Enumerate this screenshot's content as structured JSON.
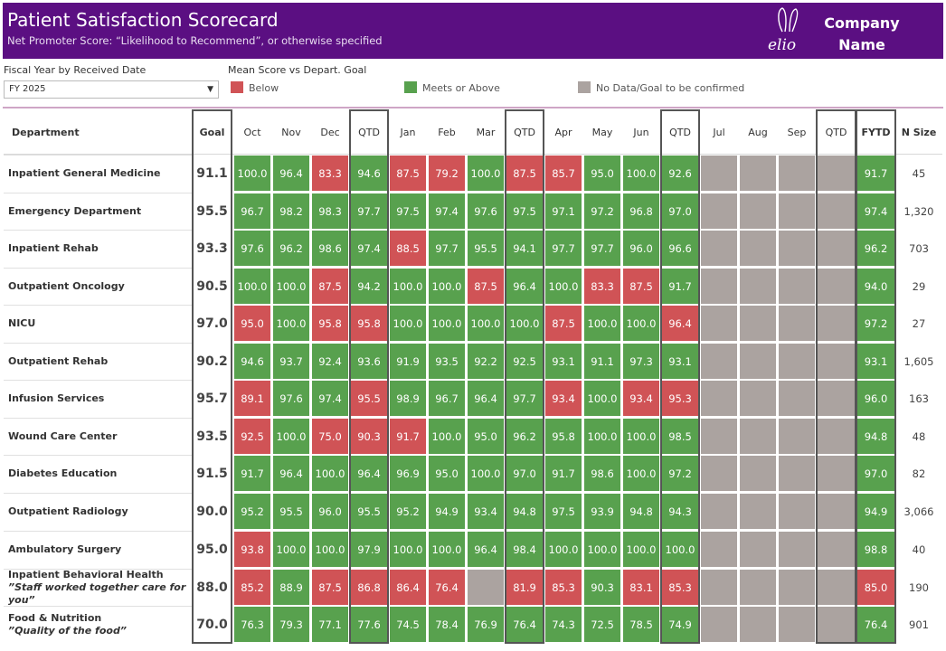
{
  "header": {
    "title": "Patient Satisfaction Scorecard",
    "subtitle": "Net Promoter Score: “Likelihood to Recommend”, or otherwise specified",
    "logo_text": "elio",
    "company_line1": "Company",
    "company_line2": "Name"
  },
  "filter": {
    "label": "Fiscal Year by Received Date",
    "value": "FY 2025"
  },
  "legend": {
    "title": "Mean Score vs Depart. Goal",
    "items": [
      {
        "label": "Below",
        "color": "#d05356"
      },
      {
        "label": "Meets or Above",
        "color": "#58a14e"
      },
      {
        "label": "No Data/Goal to be confirmed",
        "color": "#aba3a0"
      }
    ]
  },
  "chart_data": {
    "type": "table",
    "title": "Patient Satisfaction Scorecard",
    "columns": [
      "Department",
      "Goal",
      "Oct",
      "Nov",
      "Dec",
      "QTD",
      "Jan",
      "Feb",
      "Mar",
      "QTD",
      "Apr",
      "May",
      "Jun",
      "QTD",
      "Jul",
      "Aug",
      "Sep",
      "QTD",
      "FYTD",
      "N Size"
    ],
    "rows": [
      {
        "dept": "Inpatient General Medicine",
        "sub": "",
        "goal": "91.1",
        "values": [
          "100.0",
          "96.4",
          "83.3",
          "94.6",
          "87.5",
          "79.2",
          "100.0",
          "87.5",
          "85.7",
          "95.0",
          "100.0",
          "92.6",
          "",
          "",
          "",
          "",
          "91.7"
        ],
        "n": "45"
      },
      {
        "dept": "Emergency Department",
        "sub": "",
        "goal": "95.5",
        "values": [
          "96.7",
          "98.2",
          "98.3",
          "97.7",
          "97.5",
          "97.4",
          "97.6",
          "97.5",
          "97.1",
          "97.2",
          "96.8",
          "97.0",
          "",
          "",
          "",
          "",
          "97.4"
        ],
        "n": "1,320"
      },
      {
        "dept": "Inpatient Rehab",
        "sub": "",
        "goal": "93.3",
        "values": [
          "97.6",
          "96.2",
          "98.6",
          "97.4",
          "88.5",
          "97.7",
          "95.5",
          "94.1",
          "97.7",
          "97.7",
          "96.0",
          "96.6",
          "",
          "",
          "",
          "",
          "96.2"
        ],
        "n": "703"
      },
      {
        "dept": "Outpatient Oncology",
        "sub": "",
        "goal": "90.5",
        "values": [
          "100.0",
          "100.0",
          "87.5",
          "94.2",
          "100.0",
          "100.0",
          "87.5",
          "96.4",
          "100.0",
          "83.3",
          "87.5",
          "91.7",
          "",
          "",
          "",
          "",
          "94.0"
        ],
        "n": "29"
      },
      {
        "dept": "NICU",
        "sub": "",
        "goal": "97.0",
        "values": [
          "95.0",
          "100.0",
          "95.8",
          "95.8",
          "100.0",
          "100.0",
          "100.0",
          "100.0",
          "87.5",
          "100.0",
          "100.0",
          "96.4",
          "",
          "",
          "",
          "",
          "97.2"
        ],
        "n": "27"
      },
      {
        "dept": "Outpatient Rehab",
        "sub": "",
        "goal": "90.2",
        "values": [
          "94.6",
          "93.7",
          "92.4",
          "93.6",
          "91.9",
          "93.5",
          "92.2",
          "92.5",
          "93.1",
          "91.1",
          "97.3",
          "93.1",
          "",
          "",
          "",
          "",
          "93.1"
        ],
        "n": "1,605"
      },
      {
        "dept": "Infusion Services",
        "sub": "",
        "goal": "95.7",
        "values": [
          "89.1",
          "97.6",
          "97.4",
          "95.5",
          "98.9",
          "96.7",
          "96.4",
          "97.7",
          "93.4",
          "100.0",
          "93.4",
          "95.3",
          "",
          "",
          "",
          "",
          "96.0"
        ],
        "n": "163"
      },
      {
        "dept": "Wound Care Center",
        "sub": "",
        "goal": "93.5",
        "values": [
          "92.5",
          "100.0",
          "75.0",
          "90.3",
          "91.7",
          "100.0",
          "95.0",
          "96.2",
          "95.8",
          "100.0",
          "100.0",
          "98.5",
          "",
          "",
          "",
          "",
          "94.8"
        ],
        "n": "48"
      },
      {
        "dept": "Diabetes Education",
        "sub": "",
        "goal": "91.5",
        "values": [
          "91.7",
          "96.4",
          "100.0",
          "96.4",
          "96.9",
          "95.0",
          "100.0",
          "97.0",
          "91.7",
          "98.6",
          "100.0",
          "97.2",
          "",
          "",
          "",
          "",
          "97.0"
        ],
        "n": "82"
      },
      {
        "dept": "Outpatient Radiology",
        "sub": "",
        "goal": "90.0",
        "values": [
          "95.2",
          "95.5",
          "96.0",
          "95.5",
          "95.2",
          "94.9",
          "93.4",
          "94.8",
          "97.5",
          "93.9",
          "94.8",
          "94.3",
          "",
          "",
          "",
          "",
          "94.9"
        ],
        "n": "3,066"
      },
      {
        "dept": "Ambulatory Surgery",
        "sub": "",
        "goal": "95.0",
        "values": [
          "93.8",
          "100.0",
          "100.0",
          "97.9",
          "100.0",
          "100.0",
          "96.4",
          "98.4",
          "100.0",
          "100.0",
          "100.0",
          "100.0",
          "",
          "",
          "",
          "",
          "98.8"
        ],
        "n": "40"
      },
      {
        "dept": "Inpatient Behavioral Health",
        "sub": "”Staff worked together care for you”",
        "goal": "88.0",
        "values": [
          "85.2",
          "88.9",
          "87.5",
          "86.8",
          "86.4",
          "76.4",
          "",
          "81.9",
          "85.3",
          "90.3",
          "83.1",
          "85.3",
          "",
          "",
          "",
          "",
          "85.0"
        ],
        "n": "190"
      },
      {
        "dept": "Food & Nutrition",
        "sub": "”Quality of the food”",
        "goal": "70.0",
        "values": [
          "76.3",
          "79.3",
          "77.1",
          "77.6",
          "74.5",
          "78.4",
          "76.9",
          "76.4",
          "74.3",
          "72.5",
          "78.5",
          "74.9",
          "",
          "",
          "",
          "",
          "76.4"
        ],
        "n": "901"
      }
    ]
  }
}
